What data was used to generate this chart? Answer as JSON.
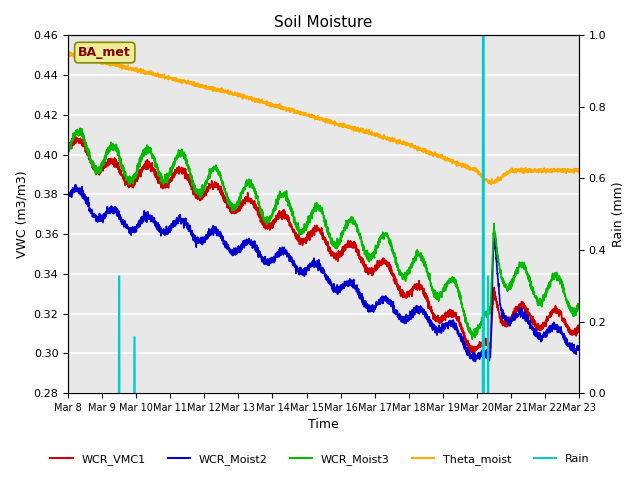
{
  "title": "Soil Moisture",
  "ylabel_left": "VWC (m3/m3)",
  "ylabel_right": "Rain (mm)",
  "xlabel": "Time",
  "ylim_left": [
    0.28,
    0.46
  ],
  "ylim_right": [
    0.0,
    1.0
  ],
  "x_tick_labels": [
    "Mar 8",
    "Mar 9",
    "Mar 10",
    "Mar 11",
    "Mar 12",
    "Mar 13",
    "Mar 14",
    "Mar 15",
    "Mar 16",
    "Mar 17",
    "Mar 18",
    "Mar 19",
    "Mar 20",
    "Mar 21",
    "Mar 22",
    "Mar 23"
  ],
  "fig_facecolor": "#ffffff",
  "axes_facecolor": "#e8e8e8",
  "legend_label": "BA_met",
  "legend_box_facecolor": "#eeee99",
  "legend_box_edgecolor": "#888800",
  "legend_text_color": "#800000",
  "colors": {
    "WCR_VMC1": "#cc0000",
    "WCR_Moist2": "#0000cc",
    "WCR_Moist3": "#00bb00",
    "Theta_moist": "#ffaa00",
    "Rain": "#00cccc"
  },
  "n_points": 3000
}
